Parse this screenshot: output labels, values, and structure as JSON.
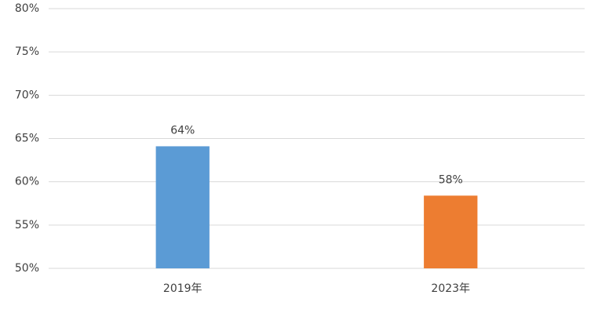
{
  "chart_data": {
    "type": "bar",
    "categories": [
      "2019年",
      "2023年"
    ],
    "values": [
      64.1,
      58.4
    ],
    "value_labels": [
      "64%",
      "58%"
    ],
    "colors": [
      "#5b9bd5",
      "#ed7d31"
    ],
    "ylim": [
      50,
      80
    ],
    "yticks": [
      {
        "value": 50,
        "label": "50%"
      },
      {
        "value": 55,
        "label": "55%"
      },
      {
        "value": 60,
        "label": "60%"
      },
      {
        "value": 65,
        "label": "65%"
      },
      {
        "value": 70,
        "label": "70%"
      },
      {
        "value": 75,
        "label": "75%"
      },
      {
        "value": 80,
        "label": "80%"
      }
    ],
    "grid": true
  }
}
